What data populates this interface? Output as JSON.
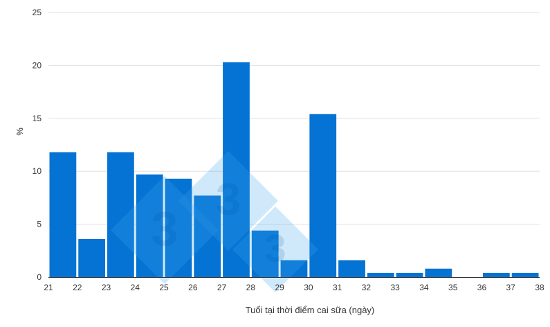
{
  "chart_data": {
    "type": "bar",
    "title": "",
    "xlabel": "Tuổi tại thời điểm cai sữa (ngày)",
    "ylabel": "%",
    "ylim": [
      0,
      25
    ],
    "yticks": [
      "0",
      "5",
      "10",
      "15",
      "20",
      "25"
    ],
    "xticks": [
      "21",
      "22",
      "23",
      "24",
      "25",
      "26",
      "27",
      "28",
      "29",
      "30",
      "31",
      "32",
      "33",
      "34",
      "35",
      "36",
      "37",
      "38"
    ],
    "grid": true,
    "legend": "none",
    "bar_color": "#0473d3",
    "bars": [
      {
        "from": 21,
        "to": 22,
        "value": 11.8
      },
      {
        "from": 22,
        "to": 23,
        "value": 3.6
      },
      {
        "from": 23,
        "to": 24,
        "value": 11.8
      },
      {
        "from": 24,
        "to": 25,
        "value": 9.7
      },
      {
        "from": 25,
        "to": 26,
        "value": 9.3
      },
      {
        "from": 26,
        "to": 27,
        "value": 7.7
      },
      {
        "from": 27,
        "to": 28,
        "value": 20.3
      },
      {
        "from": 28,
        "to": 29,
        "value": 4.4
      },
      {
        "from": 29,
        "to": 30,
        "value": 1.6
      },
      {
        "from": 30,
        "to": 31,
        "value": 15.4
      },
      {
        "from": 31,
        "to": 32,
        "value": 1.6
      },
      {
        "from": 32,
        "to": 33,
        "value": 0.4
      },
      {
        "from": 33,
        "to": 34,
        "value": 0.4
      },
      {
        "from": 34,
        "to": 35,
        "value": 0.8
      },
      {
        "from": 35,
        "to": 36,
        "value": 0
      },
      {
        "from": 36,
        "to": 37,
        "value": 0.4
      },
      {
        "from": 37,
        "to": 38,
        "value": 0.4
      }
    ]
  },
  "watermark": {
    "text": "3"
  }
}
